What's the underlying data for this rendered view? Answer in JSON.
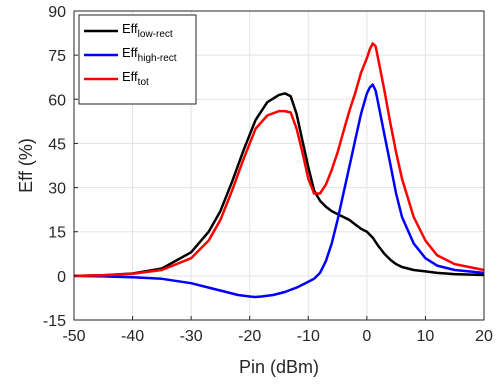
{
  "chart_data": {
    "type": "line",
    "xlabel": "Pin (dBm)",
    "ylabel": "Eff (%)",
    "xlim": [
      -50,
      20
    ],
    "ylim": [
      -15,
      90
    ],
    "xticks": [
      -50,
      -40,
      -30,
      -20,
      -10,
      0,
      10,
      20
    ],
    "yticks": [
      -15,
      0,
      15,
      30,
      45,
      60,
      75,
      90
    ],
    "xtick_labels": [
      "-50",
      "-40",
      "-30",
      "-20",
      "-10",
      "0",
      "10",
      "20"
    ],
    "ytick_labels": [
      "-15",
      "0",
      "15",
      "30",
      "45",
      "60",
      "75",
      "90"
    ],
    "grid": true,
    "legend_position": "top-left",
    "series": [
      {
        "name": "Eff",
        "subscript": "low-rect",
        "color": "#000000",
        "x": [
          -50,
          -45,
          -40,
          -35,
          -30,
          -27,
          -25,
          -23,
          -21,
          -19,
          -17,
          -15,
          -14,
          -13,
          -12,
          -11,
          -10,
          -9,
          -8,
          -7,
          -6,
          -5,
          -4,
          -3,
          -2,
          -1,
          0,
          1,
          2,
          3,
          4,
          5,
          6,
          8,
          10,
          12,
          15,
          20
        ],
        "y": [
          0,
          0.2,
          0.8,
          2.5,
          8,
          15,
          22,
          32,
          43,
          53,
          59,
          61.5,
          62,
          61,
          55,
          46,
          37,
          29,
          25.5,
          23.5,
          22,
          21,
          20,
          19,
          17.5,
          16,
          15,
          13,
          10,
          7.5,
          5.5,
          4,
          3,
          2,
          1.5,
          1,
          0.6,
          0.3
        ]
      },
      {
        "name": "Eff",
        "subscript": "high-rect",
        "color": "#0000ff",
        "x": [
          -50,
          -45,
          -40,
          -35,
          -30,
          -27,
          -24,
          -22,
          -20,
          -19,
          -18,
          -16,
          -14,
          -12,
          -11,
          -10,
          -9,
          -8,
          -7,
          -6,
          -5,
          -4,
          -3,
          -2,
          -1,
          0,
          0.5,
          1,
          1.5,
          2,
          3,
          4,
          5,
          6,
          8,
          10,
          12,
          15,
          20
        ],
        "y": [
          0,
          -0.2,
          -0.5,
          -1,
          -2.5,
          -4,
          -5.5,
          -6.5,
          -7,
          -7.2,
          -7,
          -6.5,
          -5.5,
          -4,
          -3,
          -2,
          -1,
          1,
          5,
          11,
          19,
          28,
          37,
          46,
          55,
          62,
          64,
          65,
          63,
          58,
          48,
          38,
          28,
          20,
          11,
          6,
          3.5,
          2,
          1
        ]
      },
      {
        "name": "Eff",
        "subscript": "tot",
        "color": "#ff0000",
        "x": [
          -50,
          -45,
          -40,
          -35,
          -30,
          -27,
          -25,
          -23,
          -21,
          -19,
          -17,
          -15,
          -14,
          -13,
          -12,
          -11,
          -10,
          -9,
          -8,
          -7,
          -6,
          -5,
          -4,
          -3,
          -2,
          -1,
          0,
          0.5,
          1,
          1.5,
          2,
          3,
          4,
          5,
          6,
          8,
          10,
          12,
          15,
          20
        ],
        "y": [
          0,
          0.2,
          0.7,
          2,
          6,
          12,
          19,
          29,
          40,
          50,
          54.5,
          56,
          56,
          55.5,
          50,
          42,
          33,
          28,
          28,
          31,
          36,
          42,
          49,
          56,
          62,
          69,
          74,
          77,
          79,
          78,
          73,
          63,
          52,
          42,
          33,
          20,
          12,
          7,
          4,
          2
        ]
      }
    ]
  }
}
